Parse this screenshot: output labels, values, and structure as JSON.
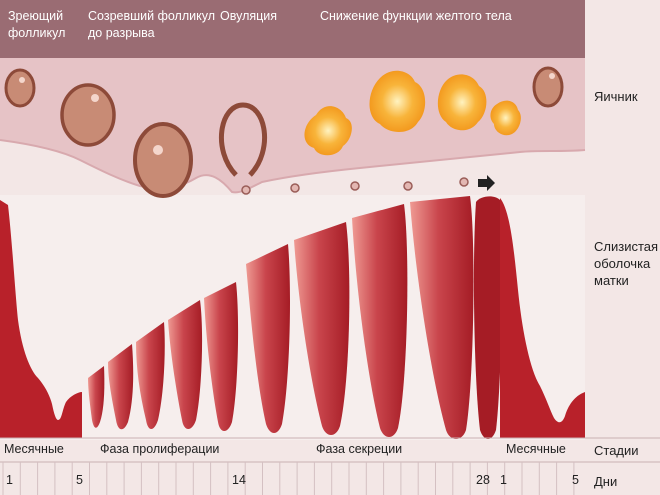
{
  "header": {
    "maturing_follicle": [
      "Зреющий",
      "фолликул"
    ],
    "mature_follicle": [
      "Созревший фолликул",
      "до разрыва"
    ],
    "ovulation": "Овуляция",
    "corpus_luteum_decline": "Снижение функции желтого тела"
  },
  "side_labels": {
    "ovary": "Яичник",
    "mucosa": [
      "Слизистая",
      "оболочка",
      "матки"
    ],
    "stages": "Стадии",
    "days": "Дни"
  },
  "stages": {
    "menses_start": "Месячные",
    "proliferation": "Фаза пролиферации",
    "secretion": "Фаза секреции",
    "menses_end": "Месячные"
  },
  "days": [
    "1",
    "5",
    "14",
    "28",
    "1",
    "5"
  ],
  "colors": {
    "background": "#f3e7e6",
    "header_band": "#9a6c73",
    "ovary_band": "#e6c3c6",
    "mucosa_dark": "#b8212a",
    "mucosa_light": "#ee8f8a",
    "corpus_luteum": "#f5a623"
  }
}
